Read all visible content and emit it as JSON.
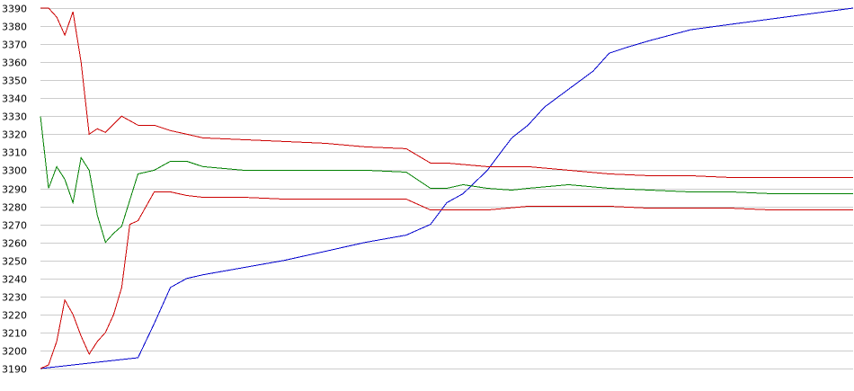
{
  "chart_data": {
    "type": "line",
    "title": "",
    "xlabel": "",
    "ylabel": "",
    "ylim": [
      3190,
      3390
    ],
    "y_ticks": [
      "3390",
      "3380",
      "3370",
      "3360",
      "3350",
      "3340",
      "3330",
      "3320",
      "3310",
      "3300",
      "3290",
      "3280",
      "3270",
      "3260",
      "3250",
      "3240",
      "3230",
      "3220",
      "3210",
      "3200",
      "3190"
    ],
    "xlim": [
      0,
      100
    ],
    "grid": "horizontal",
    "series": [
      {
        "color": "#0000cc",
        "x": [
          0,
          2,
          4,
          6,
          8,
          10,
          12,
          14,
          16,
          18,
          20,
          25,
          30,
          35,
          40,
          45,
          48,
          50,
          52,
          55,
          58,
          60,
          62,
          65,
          68,
          70,
          72,
          75,
          80,
          85,
          90,
          95,
          100
        ],
        "y": [
          3190,
          3191,
          3192,
          3193,
          3194,
          3195,
          3196,
          3215,
          3235,
          3240,
          3242,
          3246,
          3250,
          3255,
          3260,
          3264,
          3270,
          3282,
          3287,
          3300,
          3318,
          3325,
          3335,
          3345,
          3355,
          3365,
          3368,
          3372,
          3378,
          3381,
          3384,
          3387,
          3390
        ]
      },
      {
        "color": "#cc0000",
        "x": [
          0,
          1,
          2,
          3,
          4,
          5,
          6,
          7,
          8,
          10,
          12,
          14,
          16,
          18,
          20,
          25,
          30,
          35,
          40,
          45,
          48,
          50,
          55,
          60,
          65,
          70,
          75,
          80,
          85,
          90,
          95,
          100
        ],
        "y": [
          3390,
          3390,
          3385,
          3375,
          3388,
          3360,
          3320,
          3323,
          3321,
          3330,
          3325,
          3325,
          3322,
          3320,
          3318,
          3317,
          3316,
          3315,
          3313,
          3312,
          3304,
          3304,
          3302,
          3302,
          3300,
          3298,
          3297,
          3297,
          3296,
          3296,
          3296,
          3296
        ]
      },
      {
        "color": "#008000",
        "x": [
          0,
          1,
          2,
          3,
          4,
          5,
          6,
          7,
          8,
          9,
          10,
          12,
          14,
          16,
          18,
          20,
          25,
          30,
          35,
          40,
          45,
          48,
          50,
          52,
          55,
          58,
          60,
          65,
          70,
          75,
          80,
          85,
          90,
          95,
          100
        ],
        "y": [
          3330,
          3290,
          3302,
          3295,
          3282,
          3307,
          3300,
          3275,
          3260,
          3265,
          3269,
          3298,
          3300,
          3305,
          3305,
          3302,
          3300,
          3300,
          3300,
          3300,
          3299,
          3290,
          3290,
          3292,
          3290,
          3289,
          3290,
          3292,
          3290,
          3289,
          3288,
          3288,
          3287,
          3287,
          3287
        ]
      },
      {
        "color": "#cc0000",
        "x": [
          0,
          1,
          2,
          3,
          4,
          5,
          6,
          7,
          8,
          9,
          10,
          11,
          12,
          14,
          16,
          18,
          20,
          25,
          30,
          35,
          40,
          45,
          48,
          50,
          55,
          60,
          65,
          70,
          75,
          80,
          85,
          90,
          95,
          100
        ],
        "y": [
          3190,
          3192,
          3205,
          3228,
          3220,
          3208,
          3198,
          3205,
          3210,
          3220,
          3235,
          3270,
          3272,
          3288,
          3288,
          3286,
          3285,
          3285,
          3284,
          3284,
          3284,
          3284,
          3278,
          3278,
          3278,
          3280,
          3280,
          3280,
          3279,
          3279,
          3279,
          3278,
          3278,
          3278
        ]
      }
    ]
  }
}
